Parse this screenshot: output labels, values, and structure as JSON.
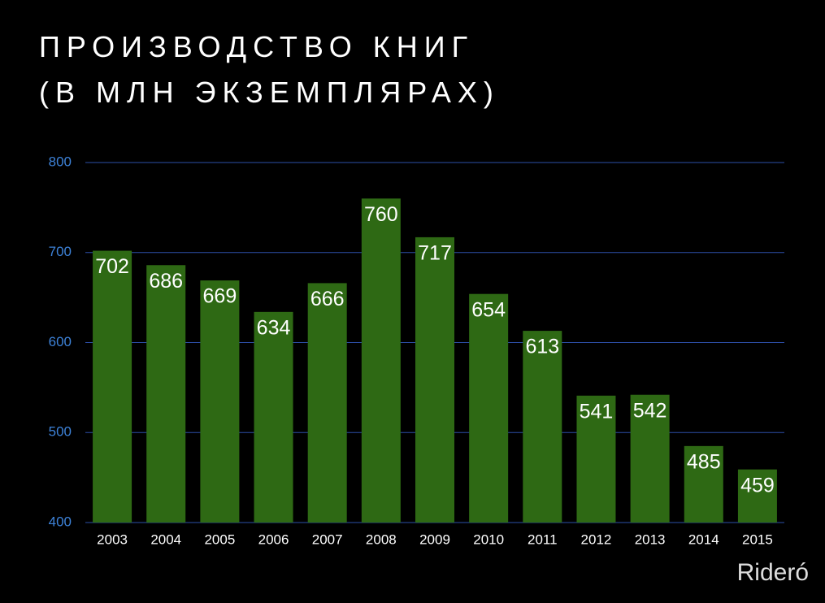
{
  "chart_data": {
    "type": "bar",
    "title": "ПРОИЗВОДСТВО КНИГ (В МЛН ЭКЗЕМПЛЯРАХ)",
    "categories": [
      "2003",
      "2004",
      "2005",
      "2006",
      "2007",
      "2008",
      "2009",
      "2010",
      "2011",
      "2012",
      "2013",
      "2014",
      "2015"
    ],
    "values": [
      702,
      686,
      669,
      634,
      666,
      760,
      717,
      654,
      613,
      541,
      542,
      485,
      459
    ],
    "color": "#2e6914",
    "ylim": [
      400,
      800
    ],
    "yticks": [
      400,
      500,
      600,
      700,
      800
    ],
    "grid": true
  },
  "watermark": "Rideró"
}
